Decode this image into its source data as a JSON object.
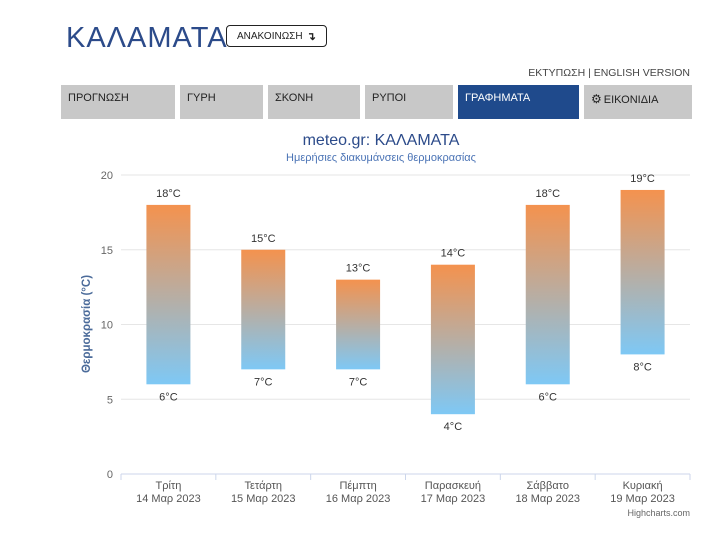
{
  "header": {
    "city": "ΚΑΛΑΜΑΤΑ",
    "announce_label": "ΑΝΑΚΟΙΝΩΣΗ",
    "announce_icon": "arrow-down-turn-icon"
  },
  "top_links": {
    "print": "ΕΚΤΥΠΩΣΗ",
    "separator": " | ",
    "english": "ENGLISH VERSION"
  },
  "tabs": [
    {
      "label": "ΠΡΟΓΝΩΣΗ",
      "active": false
    },
    {
      "label": "ΓΥΡΗ",
      "active": false
    },
    {
      "label": "ΣΚΟΝΗ",
      "active": false
    },
    {
      "label": "ΡΥΠΟΙ",
      "active": false
    },
    {
      "label": "ΓΡΑΦΗΜΑΤΑ",
      "active": true
    },
    {
      "label": "ΕΙΚΟΝΙΔΙΑ",
      "active": false,
      "icon": "gear-icon"
    }
  ],
  "colors": {
    "accent": "#1f4a8c",
    "bar_top": "#f4924e",
    "bar_bottom": "#7ec8f5",
    "title": "#2c4b8a"
  },
  "chart_data": {
    "type": "bar",
    "subtype": "columnrange",
    "title": "meteo.gr: ΚΑΛΑΜΑΤΑ",
    "subtitle": "Ημερήσιες διακυμάνσεις θερμοκρασίας",
    "ylabel": "Θερμοκρασία (°C)",
    "xlabel": "",
    "ylim": [
      0,
      20
    ],
    "yticks": [
      0,
      5,
      10,
      15,
      20
    ],
    "grid": true,
    "unit": "°C",
    "credits": "Highcharts.com",
    "categories": [
      {
        "day": "Τρίτη",
        "date": "14 Μαρ 2023"
      },
      {
        "day": "Τετάρτη",
        "date": "15 Μαρ 2023"
      },
      {
        "day": "Πέμπτη",
        "date": "16 Μαρ 2023"
      },
      {
        "day": "Παρασκευή",
        "date": "17 Μαρ 2023"
      },
      {
        "day": "Σάββατο",
        "date": "18 Μαρ 2023"
      },
      {
        "day": "Κυριακή",
        "date": "19 Μαρ 2023"
      }
    ],
    "low": [
      6,
      7,
      7,
      4,
      6,
      8
    ],
    "high": [
      18,
      15,
      13,
      14,
      18,
      19
    ],
    "low_labels": [
      "6°C",
      "7°C",
      "7°C",
      "4°C",
      "6°C",
      "8°C"
    ],
    "high_labels": [
      "18°C",
      "15°C",
      "13°C",
      "14°C",
      "18°C",
      "19°C"
    ]
  }
}
